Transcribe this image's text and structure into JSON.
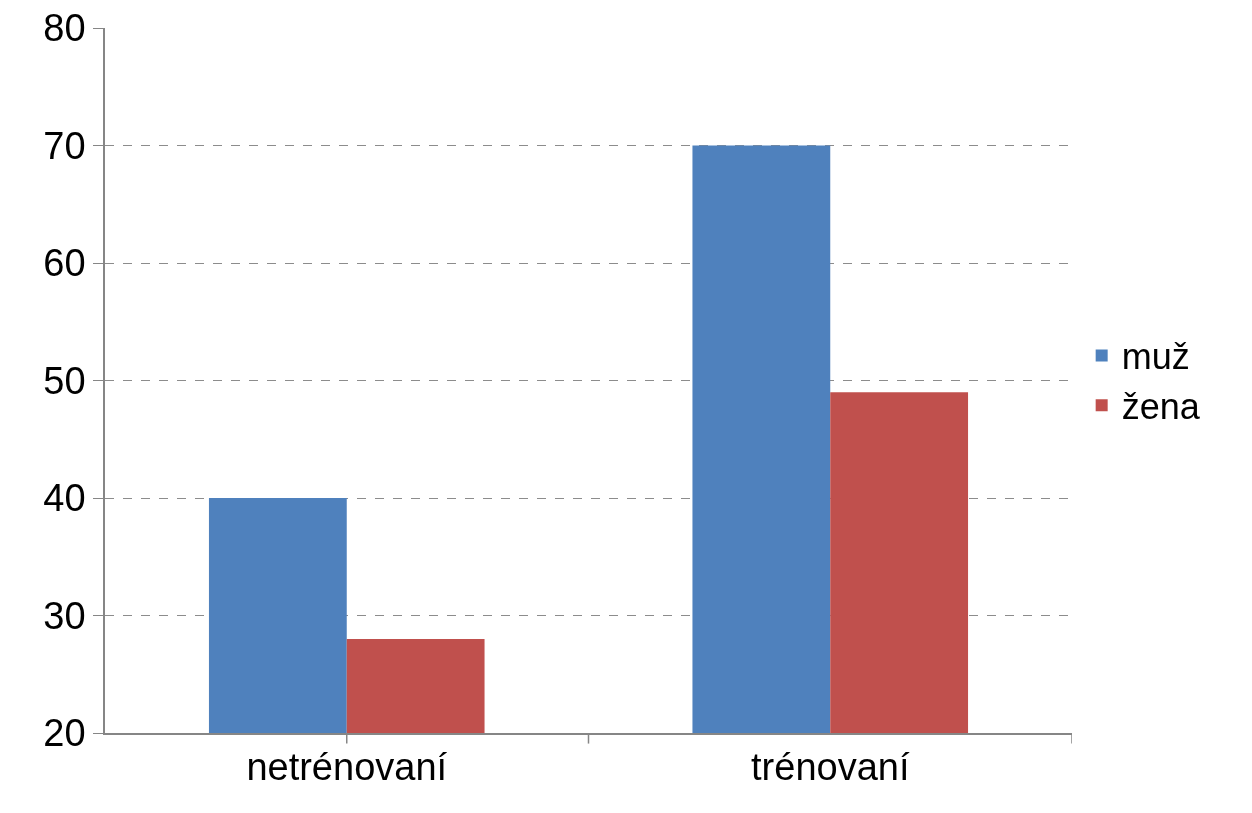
{
  "chart_data": {
    "type": "bar",
    "categories": [
      "netrénovaní",
      "trénovaní"
    ],
    "series": [
      {
        "name": "muž",
        "color": "#4f81bd",
        "values": [
          40,
          70
        ]
      },
      {
        "name": "žena",
        "color": "#c0504d",
        "values": [
          28,
          49
        ]
      }
    ],
    "ylim": [
      20,
      80
    ],
    "yticks": [
      20,
      30,
      40,
      50,
      60,
      70,
      80
    ],
    "grid": "y",
    "legend": "right"
  }
}
